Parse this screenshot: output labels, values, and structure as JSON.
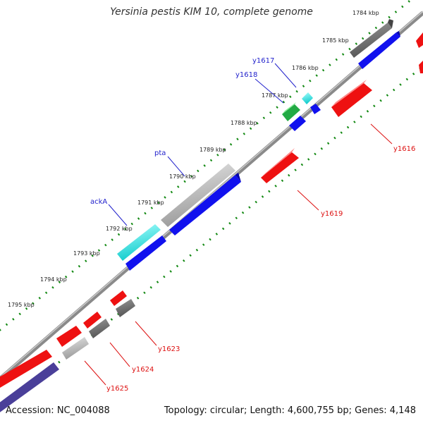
{
  "title": "Yersinia pestis KIM 10, complete genome",
  "accession_text": "Accession: NC_004088",
  "summary_text": "Topology: circular; Length: 4,600,755 bp; Genes: 4,148",
  "colors": {
    "plus_cds": "#1111ee",
    "minus_cds": "#ee1111",
    "highlight_cyan": "#22dddd",
    "highlight_gray": "#aaaaaa",
    "dark_gray": "#666666",
    "green": "#22aa44",
    "scale_dots": "#118811",
    "backbone": "#888888",
    "blue_label": "#2222cc",
    "red_label": "#dd1111"
  },
  "scale_ticks": [
    {
      "label": "1784 kbp"
    },
    {
      "label": "1785 kbp"
    },
    {
      "label": "1786 kbp"
    },
    {
      "label": "1787 kbp"
    },
    {
      "label": "1788 kbp"
    },
    {
      "label": "1789 kbp"
    },
    {
      "label": "1790 kbp"
    },
    {
      "label": "1791 kbp"
    },
    {
      "label": "1792 kbp"
    },
    {
      "label": "1793 kbp"
    },
    {
      "label": "1794 kbp"
    },
    {
      "label": "1795 kbp"
    }
  ],
  "gene_labels": [
    {
      "name": "y1617",
      "color": "blue"
    },
    {
      "name": "y1618",
      "color": "blue"
    },
    {
      "name": "pta",
      "color": "blue"
    },
    {
      "name": "ackA",
      "color": "blue"
    },
    {
      "name": "y1616",
      "color": "red"
    },
    {
      "name": "y1619",
      "color": "red"
    },
    {
      "name": "y1623",
      "color": "red"
    },
    {
      "name": "y1624",
      "color": "red"
    },
    {
      "name": "y1625",
      "color": "red"
    }
  ]
}
